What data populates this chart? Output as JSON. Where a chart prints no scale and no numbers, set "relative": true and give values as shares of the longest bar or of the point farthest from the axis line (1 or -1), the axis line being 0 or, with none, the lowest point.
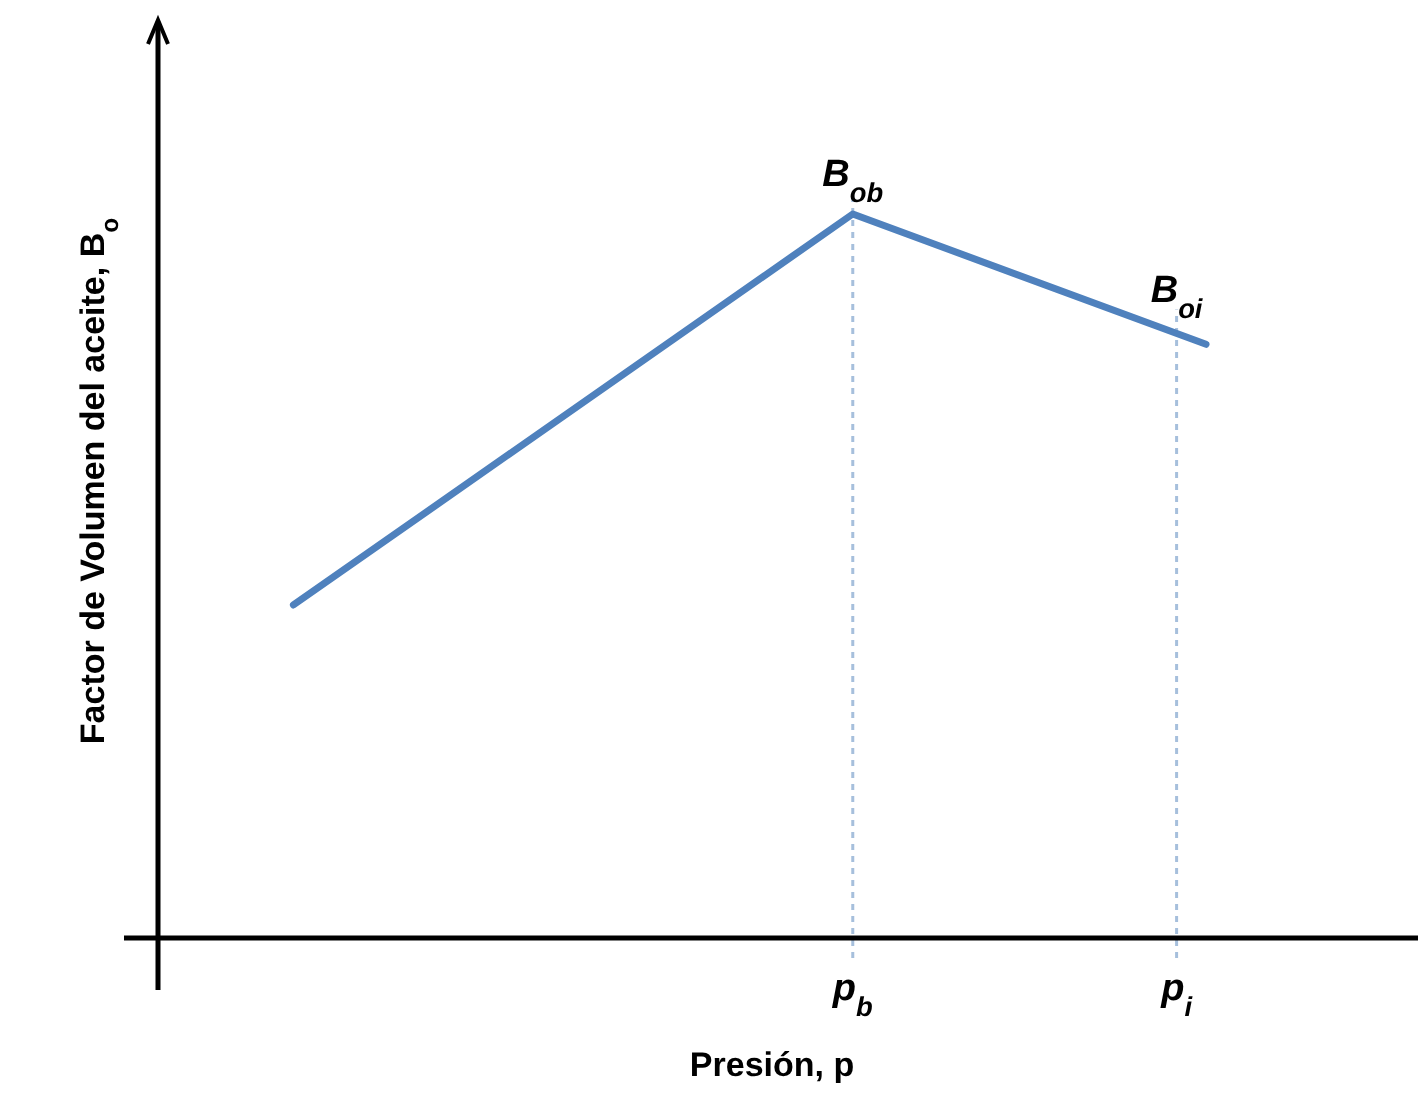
{
  "chart_data": {
    "type": "line",
    "relative": true,
    "xlabel": "Presión,  p",
    "ylabel": "Factor de Volumen del aceite,  B$_{o}$",
    "categories": [
      null,
      null,
      null,
      null,
      null,
      null,
      null,
      null,
      null,
      null,
      null,
      null,
      null,
      null,
      null,
      null,
      null,
      null,
      null,
      "p$_{b}$",
      null,
      null,
      null,
      null,
      null,
      null,
      null,
      null,
      null,
      null,
      "p$_{i}$",
      null
    ],
    "series": [
      {
        "color": "#4f81bd",
        "values": [
          0.46,
          null,
          null,
          null,
          null,
          null,
          null,
          null,
          null,
          null,
          null,
          null,
          null,
          null,
          null,
          null,
          null,
          null,
          null,
          1,
          null,
          null,
          null,
          null,
          null,
          null,
          null,
          null,
          null,
          null,
          null,
          0.82
        ]
      }
    ],
    "ref_lines": [
      {
        "axis": "x",
        "value": "p$_{b}$",
        "color": "#a6bfdc",
        "line_style": "dotted"
      },
      {
        "axis": "x",
        "value": "p$_{i}$",
        "color": "#a6bfdc",
        "line_style": "dotted"
      }
    ],
    "annotations": [
      {
        "text": "B$_{ob}$",
        "x": "p$_{b}$",
        "y": 1
      },
      {
        "text": "B$_{oi}$",
        "x": "p$_{i}$",
        "y": 0.84
      }
    ],
    "line_style": "solid"
  }
}
